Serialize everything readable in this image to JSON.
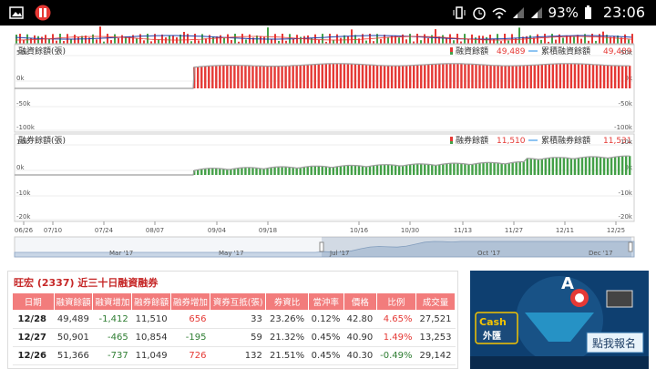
{
  "status_bar": {
    "battery": "93%",
    "time": "23:06"
  },
  "upper_panel": {
    "title": "融資餘額(張)",
    "legend_bar": "融資餘額",
    "legend_bar_value": "49,489",
    "legend_line": "累積融資餘額",
    "legend_line_value": "49,489",
    "ticks_left": [
      "50k",
      "0k",
      "-50k",
      "-100k"
    ],
    "ticks_right": [
      "50k",
      "0k",
      "-50k",
      "-100k"
    ]
  },
  "lower_panel": {
    "title": "融券餘額(張)",
    "legend_bar": "融券餘額",
    "legend_bar_value": "11,510",
    "legend_line": "累積融券餘額",
    "legend_line_value": "11,531",
    "ticks_left": [
      "10k",
      "0k",
      "-10k",
      "-20k"
    ],
    "ticks_right": [
      "10k",
      "0k",
      "-10k",
      "-20k"
    ]
  },
  "x_dates": [
    "06/26",
    "07/10",
    "07/24",
    "08/07",
    "09/04",
    "09/18",
    "10/16",
    "10/30",
    "11/13",
    "11/27",
    "12/11",
    "12/25"
  ],
  "navigator_months": [
    "Mar '17",
    "May '17",
    "Jul '17",
    "Oct '17",
    "Dec '17"
  ],
  "table": {
    "title": "旺宏 (2337) 近三十日融資融券",
    "headers": [
      "日期",
      "融資餘額",
      "融資增加",
      "融券餘額",
      "融券增加",
      "資券互抵(張)",
      "券資比",
      "當沖率",
      "價格",
      "比例",
      "成交量"
    ],
    "rows": [
      {
        "date": "12/28",
        "margin_balance": "49,489",
        "margin_change": "-1,412",
        "short_balance": "11,510",
        "short_change": "656",
        "offset": "33",
        "ratio": "23.26%",
        "daytrade": "0.12%",
        "price": "42.80",
        "pct": "4.65%",
        "volume": "27,521"
      },
      {
        "date": "12/27",
        "margin_balance": "50,901",
        "margin_change": "-465",
        "short_balance": "10,854",
        "short_change": "-195",
        "offset": "59",
        "ratio": "21.32%",
        "daytrade": "0.45%",
        "price": "40.90",
        "pct": "1.49%",
        "volume": "13,253"
      },
      {
        "date": "12/26",
        "margin_balance": "51,366",
        "margin_change": "-737",
        "short_balance": "11,049",
        "short_change": "726",
        "offset": "132",
        "ratio": "21.51%",
        "daytrade": "0.45%",
        "price": "40.30",
        "pct": "-0.49%",
        "volume": "29,142"
      }
    ]
  },
  "ad": {
    "line1": "Cash",
    "line2": "外匯",
    "button": "點我報名"
  },
  "colors": {
    "red": "#e53935",
    "green": "#43a047",
    "header": "#f27c7c",
    "line": "#9e9e9e"
  }
}
